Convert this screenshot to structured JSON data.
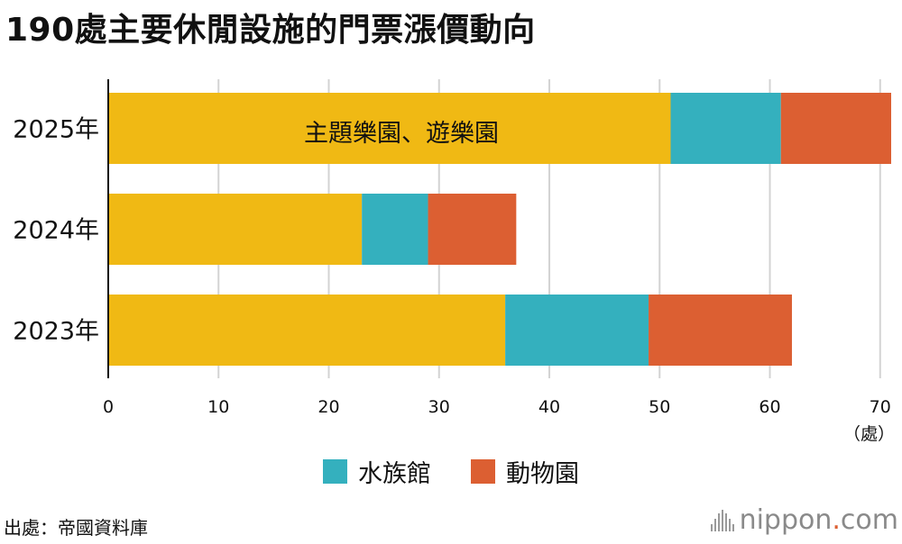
{
  "title": "190處主要休閒設施的門票漲價動向",
  "chart_data": {
    "type": "bar",
    "orientation": "horizontal",
    "stacked": true,
    "categories": [
      "2025年",
      "2024年",
      "2023年"
    ],
    "series": [
      {
        "name": "主題樂園、遊樂園",
        "values": [
          51,
          23,
          36
        ],
        "color": "#F0B914"
      },
      {
        "name": "水族館",
        "values": [
          10,
          6,
          13
        ],
        "color": "#34B0BE"
      },
      {
        "name": "動物園",
        "values": [
          10,
          8,
          13
        ],
        "color": "#DC5F32"
      }
    ],
    "xlim": [
      0,
      71
    ],
    "xticks": [
      "0",
      "10",
      "20",
      "30",
      "40",
      "50",
      "60",
      "70"
    ],
    "xunit": "（處）",
    "grid": true,
    "in_bar_label": "主題樂園、遊樂園",
    "legend": [
      "水族館",
      "動物園"
    ],
    "legend_position": "bottom-center"
  },
  "source": "出處：帝國資料庫",
  "brand": {
    "name": "nippon",
    "dot": ".",
    "suffix": "com"
  }
}
